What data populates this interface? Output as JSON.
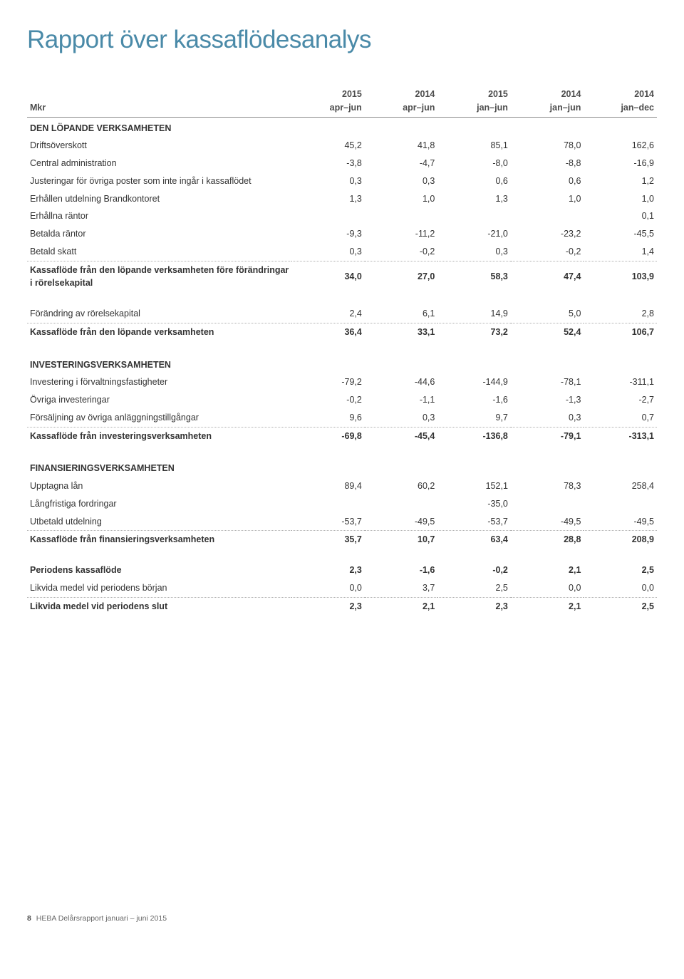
{
  "title": {
    "text": "Rapport över kassaflödesanalys",
    "color": "#4a8aa8",
    "fontsize": 35
  },
  "columns": [
    {
      "year": "2015",
      "period": "apr–jun"
    },
    {
      "year": "2014",
      "period": "apr–jun"
    },
    {
      "year": "2015",
      "period": "jan–jun"
    },
    {
      "year": "2014",
      "period": "jan–jun"
    },
    {
      "year": "2014",
      "period": "jan–dec"
    }
  ],
  "header_label": "Mkr",
  "sections": [
    {
      "title": "DEN LÖPANDE VERKSAMHETEN",
      "rows": [
        {
          "label": "Driftsöverskott",
          "v": [
            "45,2",
            "41,8",
            "85,1",
            "78,0",
            "162,6"
          ]
        },
        {
          "label": "Central administration",
          "v": [
            "-3,8",
            "-4,7",
            "-8,0",
            "-8,8",
            "-16,9"
          ]
        },
        {
          "label": "Justeringar för övriga poster som inte ingår i kassaflödet",
          "v": [
            "0,3",
            "0,3",
            "0,6",
            "0,6",
            "1,2"
          ]
        },
        {
          "label": "Erhållen utdelning Brandkontoret",
          "v": [
            "1,3",
            "1,0",
            "1,3",
            "1,0",
            "1,0"
          ]
        },
        {
          "label": "Erhållna räntor",
          "v": [
            "",
            "",
            "",
            "",
            "0,1"
          ]
        },
        {
          "label": "Betalda räntor",
          "v": [
            "-9,3",
            "-11,2",
            "-21,0",
            "-23,2",
            "-45,5"
          ]
        },
        {
          "label": "Betald skatt",
          "v": [
            "0,3",
            "-0,2",
            "0,3",
            "-0,2",
            "1,4"
          ],
          "dotted": true
        },
        {
          "label": "Kassaflöde från den löpande verksamheten före förändringar i rörelsekapital",
          "v": [
            "34,0",
            "27,0",
            "58,3",
            "47,4",
            "103,9"
          ],
          "bold": true
        }
      ],
      "gap_after": true
    },
    {
      "title": "",
      "rows": [
        {
          "label": "Förändring av rörelsekapital",
          "v": [
            "2,4",
            "6,1",
            "14,9",
            "5,0",
            "2,8"
          ],
          "dotted": true
        },
        {
          "label": "Kassaflöde från den löpande verksamheten",
          "v": [
            "36,4",
            "33,1",
            "73,2",
            "52,4",
            "106,7"
          ],
          "bold": true
        }
      ],
      "gap_after": true
    },
    {
      "title": "INVESTERINGSVERKSAMHETEN",
      "rows": [
        {
          "label": "Investering i förvaltningsfastigheter",
          "v": [
            "-79,2",
            "-44,6",
            "-144,9",
            "-78,1",
            "-311,1"
          ]
        },
        {
          "label": "Övriga investeringar",
          "v": [
            "-0,2",
            "-1,1",
            "-1,6",
            "-1,3",
            "-2,7"
          ]
        },
        {
          "label": "Försäljning av övriga anläggningstillgångar",
          "v": [
            "9,6",
            "0,3",
            "9,7",
            "0,3",
            "0,7"
          ],
          "dotted": true
        },
        {
          "label": "Kassaflöde från investeringsverksamheten",
          "v": [
            "-69,8",
            "-45,4",
            "-136,8",
            "-79,1",
            "-313,1"
          ],
          "bold": true
        }
      ],
      "gap_after": true
    },
    {
      "title": "FINANSIERINGSVERKSAMHETEN",
      "rows": [
        {
          "label": "Upptagna lån",
          "v": [
            "89,4",
            "60,2",
            "152,1",
            "78,3",
            "258,4"
          ]
        },
        {
          "label": "Långfristiga fordringar",
          "v": [
            "",
            "",
            "-35,0",
            "",
            ""
          ]
        },
        {
          "label": "Utbetald utdelning",
          "v": [
            "-53,7",
            "-49,5",
            "-53,7",
            "-49,5",
            "-49,5"
          ],
          "dotted": true
        },
        {
          "label": "Kassaflöde från finansieringsverksamheten",
          "v": [
            "35,7",
            "10,7",
            "63,4",
            "28,8",
            "208,9"
          ],
          "bold": true
        }
      ],
      "gap_after": true
    },
    {
      "title": "",
      "rows": [
        {
          "label": "Periodens kassaflöde",
          "v": [
            "2,3",
            "-1,6",
            "-0,2",
            "2,1",
            "2,5"
          ],
          "bold": true
        },
        {
          "label": "Likvida medel vid periodens början",
          "v": [
            "0,0",
            "3,7",
            "2,5",
            "0,0",
            "0,0"
          ],
          "dotted": true
        },
        {
          "label": "Likvida medel vid periodens slut",
          "v": [
            "2,3",
            "2,1",
            "2,3",
            "2,1",
            "2,5"
          ],
          "bold": true
        }
      ]
    }
  ],
  "footer": {
    "page": "8",
    "text": "HEBA Delårsrapport januari – juni 2015"
  }
}
